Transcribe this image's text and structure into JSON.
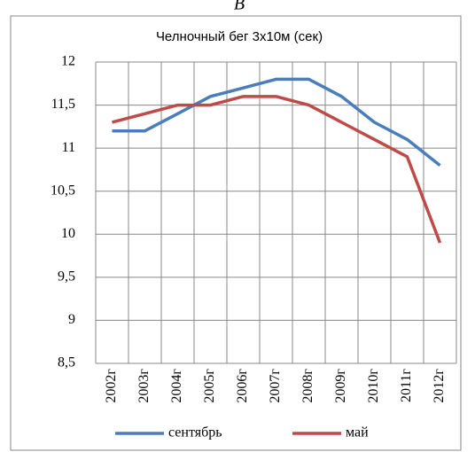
{
  "chart_data": {
    "type": "line",
    "panel_label": "В",
    "title": "Челночный бег 3х10м (сек)",
    "categories": [
      "2002г",
      "2003г",
      "2004г",
      "2005г",
      "2006г",
      "2007г",
      "2008г",
      "2009г",
      "2010г",
      "2011г",
      "2012г"
    ],
    "series": [
      {
        "name": "сентябрь",
        "color": "#4a7ebb",
        "values": [
          11.2,
          11.2,
          11.4,
          11.6,
          11.7,
          11.8,
          11.8,
          11.6,
          11.3,
          11.1,
          10.8
        ]
      },
      {
        "name": "май",
        "color": "#be4b48",
        "values": [
          11.3,
          11.4,
          11.5,
          11.5,
          11.6,
          11.6,
          11.5,
          11.3,
          11.1,
          10.9,
          9.9
        ]
      }
    ],
    "ylim": [
      8.5,
      12
    ],
    "yticks": [
      {
        "value": 8.5,
        "label": "8,5"
      },
      9,
      {
        "value": 9.5,
        "label": "9,5"
      },
      10,
      {
        "value": 10.5,
        "label": "10,5"
      },
      11,
      {
        "value": 11.5,
        "label": "11,5"
      },
      12
    ],
    "grid": true,
    "legend": "bottom"
  }
}
